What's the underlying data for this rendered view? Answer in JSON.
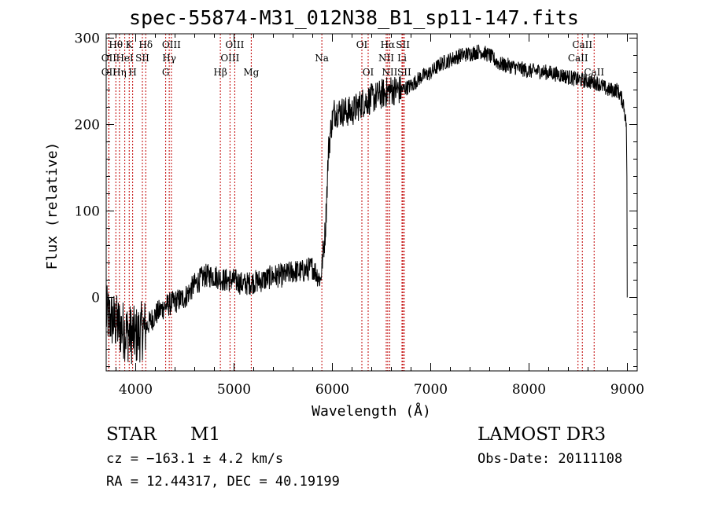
{
  "chart_data": {
    "type": "line",
    "title": "spec-55874-M31_012N38_B1_sp11-147.fits",
    "xlabel": "Wavelength (Å)",
    "ylabel": "Flux (relative)",
    "xlim": [
      3700,
      9100
    ],
    "ylim": [
      -85,
      305
    ],
    "xticks": [
      4000,
      5000,
      6000,
      7000,
      8000,
      9000
    ],
    "yticks": [
      0,
      100,
      200,
      300
    ],
    "spectrum_anchors": {
      "x": [
        3700,
        3800,
        3900,
        4000,
        4100,
        4200,
        4300,
        4400,
        4500,
        4600,
        4700,
        4800,
        4900,
        5000,
        5100,
        5200,
        5300,
        5400,
        5500,
        5600,
        5700,
        5800,
        5880,
        5930,
        5960,
        5990,
        6020,
        6100,
        6200,
        6300,
        6400,
        6500,
        6600,
        6700,
        6800,
        6900,
        7000,
        7100,
        7200,
        7300,
        7400,
        7500,
        7600,
        7700,
        7800,
        7900,
        8000,
        8100,
        8200,
        8300,
        8400,
        8500,
        8600,
        8700,
        8800,
        8900,
        8960,
        9000
      ],
      "y": [
        -20,
        -30,
        -40,
        -45,
        -35,
        -20,
        -10,
        -5,
        0,
        15,
        25,
        25,
        20,
        20,
        15,
        18,
        20,
        25,
        25,
        30,
        30,
        35,
        20,
        80,
        170,
        200,
        215,
        215,
        215,
        225,
        230,
        235,
        240,
        240,
        245,
        255,
        260,
        270,
        275,
        280,
        282,
        285,
        280,
        270,
        268,
        265,
        262,
        262,
        260,
        258,
        255,
        252,
        250,
        248,
        240,
        240,
        225,
        190
      ]
    },
    "noise_amplitude": [
      {
        "range": [
          3700,
          4100
        ],
        "amp": 35
      },
      {
        "range": [
          4100,
          5900
        ],
        "amp": 14
      },
      {
        "range": [
          5900,
          6700
        ],
        "amp": 18
      },
      {
        "range": [
          6700,
          9000
        ],
        "amp": 9
      }
    ],
    "line_markers": [
      {
        "label": "Hθ",
        "x": 3798,
        "row": 1
      },
      {
        "label": "OII",
        "x": 3727,
        "row": 2
      },
      {
        "label": "OII",
        "x": 3727,
        "row": 3
      },
      {
        "label": "Hη",
        "x": 3835,
        "row": 3
      },
      {
        "label": "K",
        "x": 3934,
        "row": 1
      },
      {
        "label": "HeI",
        "x": 3889,
        "row": 2
      },
      {
        "label": "H",
        "x": 3969,
        "row": 3
      },
      {
        "label": "Hδ",
        "x": 4102,
        "row": 1
      },
      {
        "label": "SII",
        "x": 4068,
        "row": 2
      },
      {
        "label": "OIII",
        "x": 4363,
        "row": 1
      },
      {
        "label": "Hγ",
        "x": 4341,
        "row": 2
      },
      {
        "label": "G",
        "x": 4305,
        "row": 3
      },
      {
        "label": "Hβ",
        "x": 4861,
        "row": 3
      },
      {
        "label": "OIII",
        "x": 5007,
        "row": 1
      },
      {
        "label": "OIII",
        "x": 4959,
        "row": 2
      },
      {
        "label": "Mg",
        "x": 5175,
        "row": 3
      },
      {
        "label": "Na",
        "x": 5893,
        "row": 2
      },
      {
        "label": "OI",
        "x": 6300,
        "row": 1
      },
      {
        "label": "OI",
        "x": 6364,
        "row": 3
      },
      {
        "label": "Hα",
        "x": 6563,
        "row": 1
      },
      {
        "label": "NII",
        "x": 6548,
        "row": 2
      },
      {
        "label": "NII",
        "x": 6583,
        "row": 3
      },
      {
        "label": "SII",
        "x": 6717,
        "row": 1
      },
      {
        "label": "Li",
        "x": 6708,
        "row": 2
      },
      {
        "label": "SII",
        "x": 6731,
        "row": 3
      },
      {
        "label": "CaII",
        "x": 8542,
        "row": 1
      },
      {
        "label": "CaII",
        "x": 8498,
        "row": 2
      },
      {
        "label": "CaII",
        "x": 8662,
        "row": 3
      }
    ],
    "marker_color": "#c00000"
  },
  "footer": {
    "object_class": "STAR",
    "subclass": "M1",
    "survey": "LAMOST DR3",
    "cz": "cz = −163.1 ± 4.2 km/s",
    "obs_date": "Obs-Date: 20111108",
    "coords": "RA =  12.44317, DEC =  40.19199"
  }
}
